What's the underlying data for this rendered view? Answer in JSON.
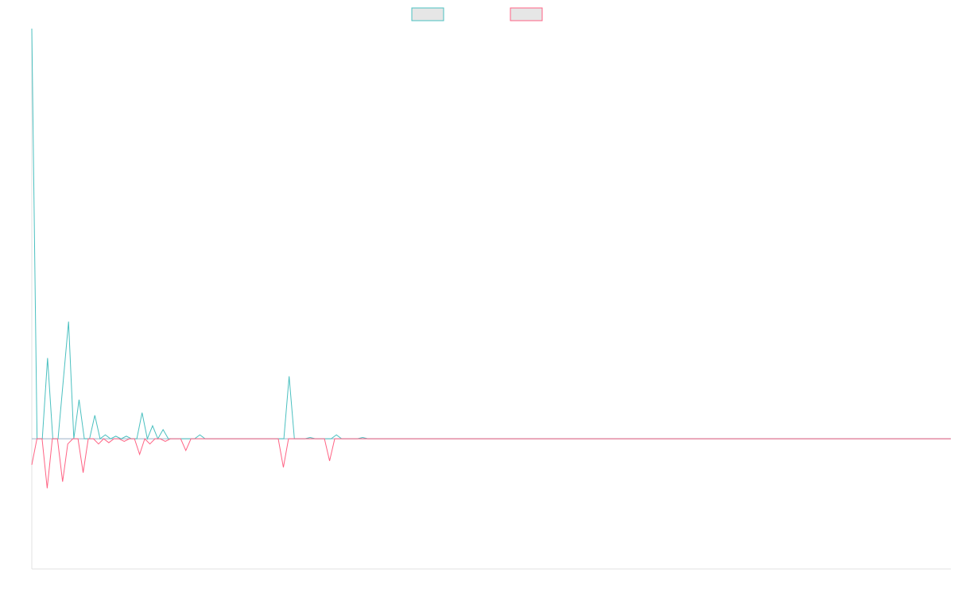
{
  "chart_data": {
    "type": "line",
    "title": "",
    "xlabel": "",
    "ylabel": "",
    "grid": false,
    "legend": {
      "placement": "top-center",
      "entries": [
        {
          "label": "",
          "color": "#4bc0c0",
          "fill": "#e6e6e6"
        },
        {
          "label": "",
          "color": "#ff6384",
          "fill": "#e6e6e6"
        }
      ]
    },
    "x_range": [
      0,
      175
    ],
    "ylim": [
      -100,
      315
    ],
    "series": [
      {
        "color": "#4bc0c0",
        "values": [
          315,
          0,
          0,
          62,
          0,
          0,
          45,
          90,
          0,
          30,
          0,
          0,
          18,
          0,
          3,
          0,
          2,
          0,
          2,
          0,
          0,
          20,
          0,
          10,
          0,
          7,
          0,
          0,
          0,
          0,
          0,
          0,
          3,
          0,
          0,
          0,
          0,
          0,
          0,
          0,
          0,
          0,
          0,
          0,
          0,
          0,
          0,
          0,
          0,
          48,
          0,
          0,
          0,
          1,
          0,
          0,
          0,
          0,
          3,
          0,
          0,
          0,
          0,
          1,
          0,
          0,
          0,
          0,
          0,
          0,
          0,
          0,
          0,
          0,
          0,
          0,
          0,
          0,
          0,
          0,
          0,
          0,
          0,
          0,
          0,
          0,
          0,
          0,
          0,
          0,
          0,
          0,
          0,
          0,
          0,
          0,
          0,
          0,
          0,
          0,
          0,
          0,
          0,
          0,
          0,
          0,
          0,
          0,
          0,
          0,
          0,
          0,
          0,
          0,
          0,
          0,
          0,
          0,
          0,
          0,
          0,
          0,
          0,
          0,
          0,
          0,
          0,
          0,
          0,
          0,
          0,
          0,
          0,
          0,
          0,
          0,
          0,
          0,
          0,
          0,
          0,
          0,
          0,
          0,
          0,
          0,
          0,
          0,
          0,
          0,
          0,
          0,
          0,
          0,
          0,
          0,
          0,
          0,
          0,
          0,
          0,
          0,
          0,
          0,
          0,
          0,
          0,
          0,
          0,
          0,
          0,
          0,
          0,
          0,
          0,
          0
        ]
      },
      {
        "color": "#ff6384",
        "values": [
          -20,
          0,
          0,
          -38,
          0,
          0,
          -33,
          -4,
          0,
          0,
          -26,
          0,
          0,
          -4,
          0,
          -3,
          0,
          0,
          -2,
          0,
          0,
          -12,
          0,
          -4,
          0,
          0,
          -2,
          0,
          0,
          0,
          -9,
          0,
          0,
          0,
          0,
          0,
          0,
          0,
          0,
          0,
          0,
          0,
          0,
          0,
          0,
          0,
          0,
          0,
          0,
          -22,
          0,
          0,
          0,
          0,
          0,
          0,
          0,
          0,
          -17,
          0,
          0,
          0,
          0,
          0,
          0,
          0,
          0,
          0,
          0,
          0,
          0,
          0,
          0,
          0,
          0,
          0,
          0,
          0,
          0,
          0,
          0,
          0,
          0,
          0,
          0,
          0,
          0,
          0,
          0,
          0,
          0,
          0,
          0,
          0,
          0,
          0,
          0,
          0,
          0,
          0,
          0,
          0,
          0,
          0,
          0,
          0,
          0,
          0,
          0,
          0,
          0,
          0,
          0,
          0,
          0,
          0,
          0,
          0,
          0,
          0,
          0,
          0,
          0,
          0,
          0,
          0,
          0,
          0,
          0,
          0,
          0,
          0,
          0,
          0,
          0,
          0,
          0,
          0,
          0,
          0,
          0,
          0,
          0,
          0,
          0,
          0,
          0,
          0,
          0,
          0,
          0,
          0,
          0,
          0,
          0,
          0,
          0,
          0,
          0,
          0,
          0,
          0,
          0,
          0,
          0,
          0,
          0,
          0,
          0,
          0,
          0,
          0,
          0,
          0,
          0,
          0,
          0,
          0,
          0,
          0
        ]
      }
    ]
  }
}
